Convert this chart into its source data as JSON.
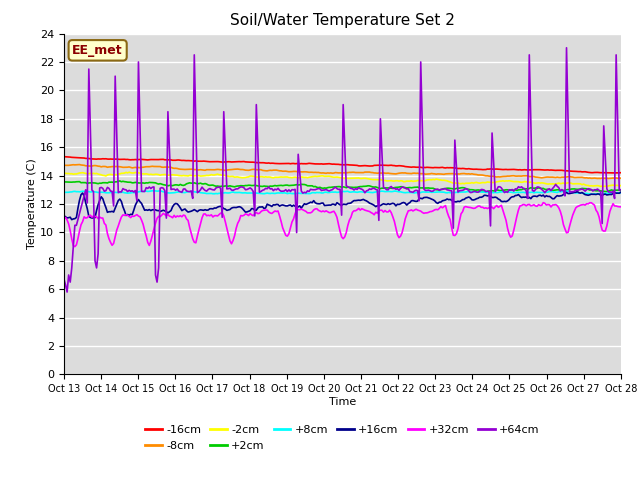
{
  "title": "Soil/Water Temperature Set 2",
  "xlabel": "Time",
  "ylabel": "Temperature (C)",
  "annotation": "EE_met",
  "annotation_color": "#8B0000",
  "annotation_bg": "#FFFFCC",
  "ylim": [
    0,
    24
  ],
  "yticks": [
    0,
    2,
    4,
    6,
    8,
    10,
    12,
    14,
    16,
    18,
    20,
    22,
    24
  ],
  "xtick_labels": [
    "Oct 13",
    "Oct 14",
    "Oct 15",
    "Oct 16",
    "Oct 17",
    "Oct 18",
    "Oct 19",
    "Oct 20",
    "Oct 21",
    "Oct 22",
    "Oct 23",
    "Oct 24",
    "Oct 25",
    "Oct 26",
    "Oct 27",
    "Oct 28"
  ],
  "series": [
    {
      "label": "-16cm",
      "color": "#FF0000"
    },
    {
      "label": "-8cm",
      "color": "#FF8C00"
    },
    {
      "label": "-2cm",
      "color": "#FFFF00"
    },
    {
      "label": "+2cm",
      "color": "#00CC00"
    },
    {
      "label": "+8cm",
      "color": "#00FFFF"
    },
    {
      "label": "+16cm",
      "color": "#00008B"
    },
    {
      "label": "+32cm",
      "color": "#FF00FF"
    },
    {
      "label": "+64cm",
      "color": "#9400D3"
    }
  ],
  "bg_color": "#DCDCDC",
  "fig_bg": "#FFFFFF",
  "grid_color": "#FFFFFF"
}
